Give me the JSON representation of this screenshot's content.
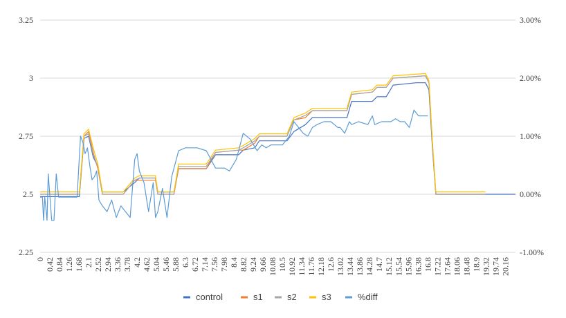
{
  "chart_data": {
    "type": "line",
    "title": "",
    "xlabel": "",
    "ylabel": "",
    "y2label": "",
    "grid": true,
    "legend_position": "bottom",
    "xlim": [
      0,
      20.6
    ],
    "ylim": [
      2.25,
      3.25
    ],
    "y2lim": [
      -0.01,
      0.03
    ],
    "yticks": [
      "2.25",
      "2.5",
      "2.75",
      "3",
      "3.25"
    ],
    "y2ticks": [
      "-1.00%",
      "0.00%",
      "1.00%",
      "2.00%",
      "3.00%"
    ],
    "xticks": [
      "0",
      "0.42",
      "0.84",
      "1.26",
      "1.68",
      "2.1",
      "2.52",
      "2.94",
      "3.36",
      "3.78",
      "4.2",
      "4.62",
      "5.04",
      "5.46",
      "5.88",
      "6.3",
      "6.72",
      "7.14",
      "7.56",
      "7.98",
      "8.4",
      "8.82",
      "9.24",
      "9.66",
      "10.08",
      "10.5",
      "10.92",
      "11.34",
      "11.76",
      "12.18",
      "12.6",
      "13.02",
      "13.44",
      "13.86",
      "14.28",
      "14.7",
      "15.12",
      "15.54",
      "15.96",
      "16.38",
      "16.8",
      "17.22",
      "17.64",
      "18.06",
      "18.48",
      "18.9",
      "19.32",
      "19.74",
      "20.16"
    ],
    "series": [
      {
        "name": "control",
        "axis": "left",
        "color": "#4472c4",
        "x": [
          0,
          1.7,
          1.9,
          2.1,
          2.3,
          2.5,
          2.7,
          3.6,
          4.1,
          4.3,
          5.0,
          5.1,
          5.8,
          6.0,
          7.2,
          7.6,
          8.6,
          8.8,
          9.3,
          9.5,
          10.7,
          11.0,
          11.5,
          11.8,
          13.3,
          13.5,
          14.4,
          14.6,
          15.0,
          15.3,
          16.3,
          16.7,
          16.85,
          17.0,
          17.15,
          20.6
        ],
        "y": [
          2.49,
          2.49,
          2.74,
          2.75,
          2.66,
          2.62,
          2.51,
          2.51,
          2.55,
          2.57,
          2.57,
          2.51,
          2.51,
          2.61,
          2.61,
          2.67,
          2.67,
          2.69,
          2.7,
          2.73,
          2.73,
          2.77,
          2.8,
          2.83,
          2.83,
          2.9,
          2.9,
          2.92,
          2.92,
          2.97,
          2.98,
          2.98,
          2.95,
          2.7,
          2.5,
          2.5
        ]
      },
      {
        "name": "s1",
        "axis": "left",
        "color": "#ed7d31",
        "x": [
          0,
          1.7,
          1.9,
          2.1,
          2.3,
          2.5,
          2.7,
          3.6,
          4.1,
          4.3,
          5.0,
          5.1,
          5.8,
          6.0,
          7.2,
          7.6,
          8.6,
          8.8,
          9.3,
          9.5,
          10.7,
          11.0,
          11.5,
          11.8,
          13.3,
          13.5,
          14.4,
          14.6,
          15.0,
          15.3,
          16.7,
          16.85,
          17.0,
          17.15,
          19.3
        ],
        "y": [
          2.5,
          2.5,
          2.75,
          2.77,
          2.68,
          2.61,
          2.5,
          2.5,
          2.56,
          2.56,
          2.56,
          2.5,
          2.5,
          2.61,
          2.61,
          2.68,
          2.69,
          2.69,
          2.72,
          2.75,
          2.75,
          2.82,
          2.83,
          2.86,
          2.86,
          2.93,
          2.94,
          2.96,
          2.96,
          3.0,
          3.01,
          2.98,
          2.72,
          2.5,
          2.5
        ]
      },
      {
        "name": "s2",
        "axis": "left",
        "color": "#a5a5a5",
        "x": [
          0,
          1.7,
          1.9,
          2.1,
          2.3,
          2.5,
          2.7,
          3.6,
          4.1,
          4.3,
          5.0,
          5.1,
          5.8,
          6.0,
          7.2,
          7.6,
          8.6,
          8.8,
          9.3,
          9.5,
          10.7,
          11.0,
          11.5,
          11.8,
          13.3,
          13.5,
          14.4,
          14.6,
          15.0,
          15.3,
          16.7,
          16.85,
          17.0,
          17.15,
          19.3
        ],
        "y": [
          2.5,
          2.5,
          2.75,
          2.76,
          2.67,
          2.62,
          2.5,
          2.5,
          2.56,
          2.57,
          2.57,
          2.5,
          2.5,
          2.62,
          2.62,
          2.68,
          2.69,
          2.7,
          2.73,
          2.75,
          2.75,
          2.82,
          2.84,
          2.86,
          2.86,
          2.93,
          2.94,
          2.96,
          2.96,
          3.0,
          3.01,
          2.98,
          2.72,
          2.5,
          2.5
        ]
      },
      {
        "name": "s3",
        "axis": "left",
        "color": "#ffc000",
        "x": [
          0,
          1.7,
          1.9,
          2.1,
          2.3,
          2.5,
          2.7,
          3.6,
          4.1,
          4.3,
          5.0,
          5.1,
          5.8,
          6.0,
          7.2,
          7.6,
          8.6,
          8.8,
          9.3,
          9.5,
          10.7,
          11.0,
          11.5,
          11.8,
          13.3,
          13.5,
          14.4,
          14.6,
          15.0,
          15.3,
          16.7,
          16.85,
          17.0,
          17.15,
          19.3
        ],
        "y": [
          2.51,
          2.51,
          2.76,
          2.78,
          2.7,
          2.63,
          2.51,
          2.51,
          2.57,
          2.58,
          2.58,
          2.51,
          2.51,
          2.63,
          2.63,
          2.69,
          2.7,
          2.71,
          2.74,
          2.76,
          2.76,
          2.83,
          2.85,
          2.87,
          2.87,
          2.94,
          2.95,
          2.97,
          2.97,
          3.01,
          3.02,
          2.99,
          2.73,
          2.51,
          2.51
        ]
      },
      {
        "name": "%diff",
        "axis": "right",
        "color": "#5b9bd5",
        "x": [
          0,
          0.1,
          0.15,
          0.2,
          0.3,
          0.35,
          0.5,
          0.6,
          0.7,
          0.8,
          1.0,
          1.2,
          1.6,
          1.75,
          1.85,
          1.95,
          2.05,
          2.15,
          2.25,
          2.35,
          2.45,
          2.55,
          2.7,
          2.9,
          3.1,
          3.3,
          3.5,
          3.7,
          3.9,
          4.1,
          4.2,
          4.3,
          4.5,
          4.7,
          4.9,
          5.0,
          5.1,
          5.3,
          5.5,
          5.7,
          5.9,
          6.0,
          6.3,
          6.5,
          6.8,
          7.2,
          7.6,
          7.8,
          8.0,
          8.2,
          8.5,
          8.8,
          9.1,
          9.4,
          9.6,
          9.8,
          10.0,
          10.5,
          10.8,
          11.0,
          11.2,
          11.4,
          11.6,
          11.8,
          12.0,
          12.3,
          12.6,
          12.9,
          13.0,
          13.2,
          13.4,
          13.5,
          13.8,
          14.2,
          14.4,
          14.5,
          14.8,
          15.2,
          15.4,
          15.6,
          15.8,
          16.0,
          16.2,
          16.4,
          16.8
        ],
        "y": [
          -0.0005,
          -0.0005,
          -0.0045,
          -0.0005,
          -0.0045,
          0.0035,
          -0.0045,
          -0.0045,
          0.0035,
          -0.0005,
          -0.0005,
          -0.0005,
          -0.0005,
          0.01,
          0.009,
          0.007,
          0.008,
          0.005,
          0.0025,
          0.003,
          0.004,
          -0.001,
          -0.002,
          -0.003,
          -0.001,
          -0.004,
          -0.002,
          -0.003,
          -0.004,
          0.006,
          0.007,
          0.004,
          0.002,
          -0.003,
          0.002,
          -0.004,
          -0.003,
          0.001,
          -0.004,
          0.003,
          0.006,
          0.0075,
          0.008,
          0.008,
          0.008,
          0.0075,
          0.0045,
          0.0045,
          0.0045,
          0.004,
          0.006,
          0.0105,
          0.0095,
          0.0075,
          0.0085,
          0.008,
          0.0085,
          0.0085,
          0.01,
          0.0125,
          0.0115,
          0.0105,
          0.01,
          0.0115,
          0.012,
          0.0125,
          0.0125,
          0.0115,
          0.0115,
          0.0105,
          0.0125,
          0.012,
          0.0125,
          0.012,
          0.0135,
          0.012,
          0.0125,
          0.0125,
          0.013,
          0.0125,
          0.0125,
          0.0115,
          0.0145,
          0.0135,
          0.0135
        ]
      }
    ]
  }
}
